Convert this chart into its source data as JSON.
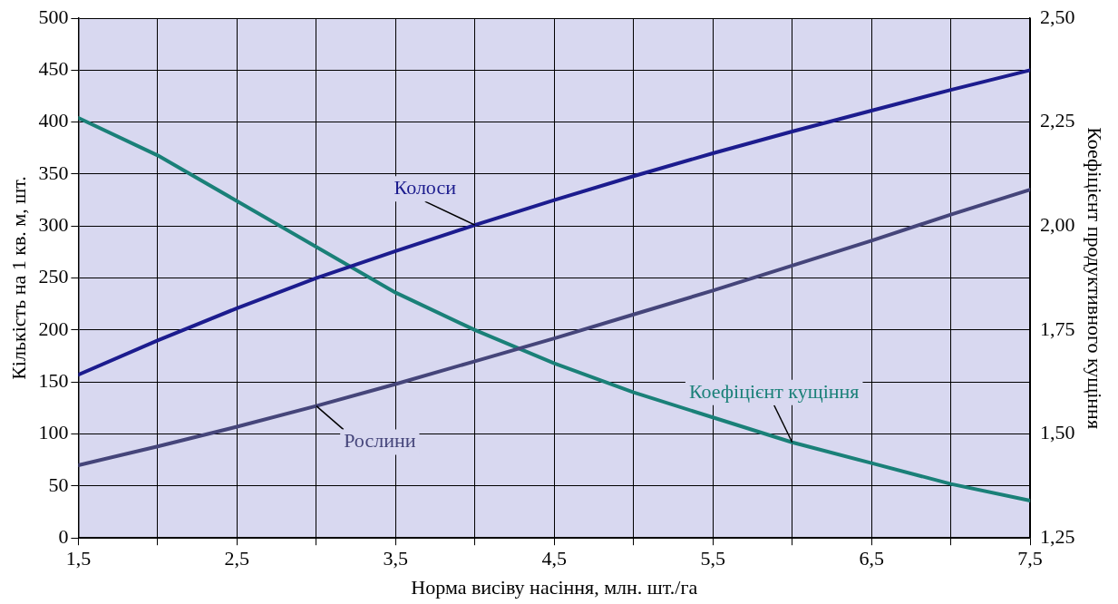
{
  "chart_data": {
    "type": "line",
    "xlabel": "Норма висіву насіння, млн. шт./га",
    "ylabel": "Кількість на 1 кв. м, шт.",
    "y2label": "Коефіцієнт продуктивного кущіння",
    "x": [
      1.5,
      2,
      2.5,
      3,
      3.5,
      4,
      4.5,
      5,
      5.5,
      6,
      6.5,
      7,
      7.5
    ],
    "series": [
      {
        "name": "Колоси",
        "color": "#1c1c8e",
        "values": [
          157,
          190,
          221,
          250,
          276,
          301,
          325,
          348,
          370,
          391,
          411,
          431,
          450
        ]
      },
      {
        "name": "Рослини",
        "color": "#45457a",
        "values": [
          70,
          88,
          107,
          127,
          148,
          170,
          192,
          215,
          238,
          262,
          286,
          311,
          335
        ]
      },
      {
        "name": "Коефіцієнт кущіння",
        "color": "#1a8078",
        "axis": "y2",
        "values": [
          2.26,
          2.17,
          2.06,
          1.95,
          1.84,
          1.75,
          1.67,
          1.6,
          1.54,
          1.48,
          1.43,
          1.38,
          1.34
        ]
      }
    ],
    "xlim": [
      1.5,
      7.5
    ],
    "xticks": [
      {
        "value": 1.5,
        "label": "1,5"
      },
      {
        "value": 2,
        "label": null
      },
      {
        "value": 2.5,
        "label": "2,5"
      },
      {
        "value": 3,
        "label": null
      },
      {
        "value": 3.5,
        "label": "3,5"
      },
      {
        "value": 4,
        "label": null
      },
      {
        "value": 4.5,
        "label": "4,5"
      },
      {
        "value": 5,
        "label": null
      },
      {
        "value": 5.5,
        "label": "5,5"
      },
      {
        "value": 6,
        "label": null
      },
      {
        "value": 6.5,
        "label": "6,5"
      },
      {
        "value": 7,
        "label": null
      },
      {
        "value": 7.5,
        "label": "7,5"
      }
    ],
    "ylim": [
      0,
      500
    ],
    "yticks": [
      0,
      50,
      100,
      150,
      200,
      250,
      300,
      350,
      400,
      450,
      500
    ],
    "y2lim": [
      1.25,
      2.5
    ],
    "y2ticks": [
      {
        "value": 1.25,
        "label": "1,25"
      },
      {
        "value": 1.5,
        "label": "1,50"
      },
      {
        "value": 1.75,
        "label": "1,75"
      },
      {
        "value": 2,
        "label": "2,00"
      },
      {
        "value": 2.25,
        "label": "2,25"
      },
      {
        "value": 2.5,
        "label": "2,50"
      }
    ],
    "grid": true,
    "legend": false,
    "marker": "none",
    "line_style": "solid"
  }
}
